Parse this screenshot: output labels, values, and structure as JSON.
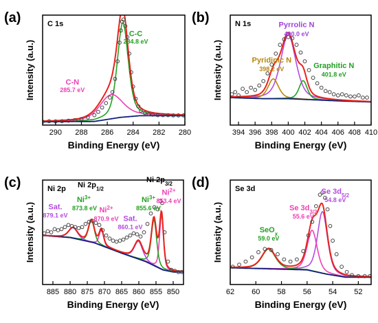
{
  "chart_data": [
    {
      "type": "line",
      "panel_label": "(a)",
      "region": "C 1s",
      "xlabel": "Binding Energy (eV)",
      "ylabel": "Intensity (a.u.)",
      "xlim": [
        291,
        280
      ],
      "x_reversed": true,
      "xticks": [
        "290",
        "288",
        "286",
        "284",
        "282",
        "280"
      ],
      "xtick_values": [
        290,
        288,
        286,
        284,
        282,
        280
      ],
      "ylim": [
        0,
        1.0
      ],
      "baseline": [
        [
          291,
          0.03
        ],
        [
          287,
          0.033
        ],
        [
          285,
          0.07
        ],
        [
          283.5,
          0.085
        ],
        [
          282,
          0.085
        ],
        [
          280,
          0.085
        ]
      ],
      "peaks": [
        {
          "label": "C-C",
          "center_label": "284.8 eV",
          "center": 284.8,
          "height": 0.86,
          "width": 0.6,
          "color": "#22a022",
          "label_color": "#22a022",
          "label_pos": [
            283.8,
            0.81
          ],
          "value_pos": [
            283.8,
            0.74
          ]
        },
        {
          "label": "C-N",
          "center_label": "285.7 eV",
          "center": 285.7,
          "height": 0.22,
          "width": 1.3,
          "color": "#ee3fb4",
          "label_color": "#ee3fb4",
          "label_pos": [
            288.7,
            0.37
          ],
          "value_pos": [
            288.7,
            0.3
          ]
        }
      ],
      "envelope_color": "#e8221b",
      "baseline_color": "#0f1f7a",
      "raw_points": [
        [
          291,
          0.03
        ],
        [
          290.5,
          0.035
        ],
        [
          290,
          0.033
        ],
        [
          289.5,
          0.035
        ],
        [
          289,
          0.04
        ],
        [
          288.5,
          0.045
        ],
        [
          288,
          0.055
        ],
        [
          287.5,
          0.07
        ],
        [
          287,
          0.09
        ],
        [
          286.7,
          0.12
        ],
        [
          286.4,
          0.16
        ],
        [
          286.1,
          0.2
        ],
        [
          285.8,
          0.25
        ],
        [
          285.6,
          0.3
        ],
        [
          285.4,
          0.42
        ],
        [
          285.2,
          0.58
        ],
        [
          285.05,
          0.75
        ],
        [
          284.95,
          0.86
        ],
        [
          284.85,
          0.94
        ],
        [
          284.75,
          0.96
        ],
        [
          284.6,
          0.9
        ],
        [
          284.45,
          0.8
        ],
        [
          284.3,
          0.65
        ],
        [
          284.15,
          0.48
        ],
        [
          284.0,
          0.35
        ],
        [
          283.8,
          0.24
        ],
        [
          283.6,
          0.17
        ],
        [
          283.4,
          0.13
        ],
        [
          283.1,
          0.11
        ],
        [
          282.8,
          0.1
        ],
        [
          282.5,
          0.095
        ],
        [
          282.1,
          0.09
        ],
        [
          281.7,
          0.09
        ],
        [
          281.3,
          0.09
        ],
        [
          280.9,
          0.088
        ],
        [
          280.5,
          0.088
        ],
        [
          280.1,
          0.088
        ]
      ]
    },
    {
      "type": "line",
      "panel_label": "(b)",
      "region": "N 1s",
      "xlabel": "Binding Energy (eV)",
      "ylabel": "Intensity (a.u.)",
      "xlim": [
        393,
        410
      ],
      "x_reversed": false,
      "xticks": [
        "394",
        "396",
        "398",
        "400",
        "402",
        "404",
        "406",
        "408",
        "410"
      ],
      "xtick_values": [
        394,
        396,
        398,
        400,
        402,
        404,
        406,
        408,
        410
      ],
      "ylim": [
        0,
        1.0
      ],
      "baseline": [
        [
          393,
          0.25
        ],
        [
          397,
          0.24
        ],
        [
          400,
          0.24
        ],
        [
          403,
          0.23
        ],
        [
          406,
          0.22
        ],
        [
          410,
          0.21
        ]
      ],
      "peaks": [
        {
          "label": "Pyrrolic N",
          "center_label": "400.0 eV",
          "center": 400.0,
          "height": 0.58,
          "width": 1.3,
          "color": "#b44ae0",
          "label_color": "#a23fe0",
          "label_pos": [
            401.0,
            0.89
          ],
          "value_pos": [
            401.0,
            0.81
          ]
        },
        {
          "label": "Pyridinic N",
          "center_label": "398.2 eV",
          "center": 398.2,
          "height": 0.18,
          "width": 0.9,
          "color": "#b8860b",
          "label_color": "#b8860b",
          "label_pos": [
            398.0,
            0.57
          ],
          "value_pos": [
            398.0,
            0.49
          ]
        },
        {
          "label": "Graphitic N",
          "center_label": "401.8 eV",
          "center": 401.8,
          "height": 0.17,
          "width": 0.7,
          "color": "#22a022",
          "label_color": "#22a022",
          "label_pos": [
            405.5,
            0.52
          ],
          "value_pos": [
            405.5,
            0.44
          ]
        }
      ],
      "envelope_color": "#e8221b",
      "baseline_color": "#0f1f7a",
      "raw_points": [
        [
          393.2,
          0.28
        ],
        [
          393.6,
          0.3
        ],
        [
          394.0,
          0.27
        ],
        [
          394.5,
          0.33
        ],
        [
          395.0,
          0.3
        ],
        [
          395.5,
          0.34
        ],
        [
          396.0,
          0.32
        ],
        [
          396.5,
          0.36
        ],
        [
          397.0,
          0.4
        ],
        [
          397.5,
          0.47
        ],
        [
          398.0,
          0.55
        ],
        [
          398.5,
          0.65
        ],
        [
          399.0,
          0.73
        ],
        [
          399.5,
          0.78
        ],
        [
          400.0,
          0.8
        ],
        [
          400.5,
          0.79
        ],
        [
          401.0,
          0.73
        ],
        [
          401.5,
          0.66
        ],
        [
          402.0,
          0.58
        ],
        [
          402.5,
          0.5
        ],
        [
          403.0,
          0.43
        ],
        [
          403.5,
          0.38
        ],
        [
          404.0,
          0.34
        ],
        [
          404.5,
          0.31
        ],
        [
          405.0,
          0.3
        ],
        [
          405.5,
          0.28
        ],
        [
          406.0,
          0.27
        ],
        [
          406.5,
          0.28
        ],
        [
          407.0,
          0.27
        ],
        [
          407.5,
          0.26
        ],
        [
          408.0,
          0.26
        ],
        [
          408.5,
          0.27
        ],
        [
          409.0,
          0.25
        ],
        [
          409.5,
          0.25
        ]
      ]
    },
    {
      "type": "line",
      "panel_label": "(c)",
      "region": "Ni 2p",
      "xlabel": "Binding Energy (eV)",
      "ylabel": "Intensity (a.u.)",
      "xlim": [
        888,
        847
      ],
      "x_reversed": true,
      "xticks": [
        "885",
        "880",
        "875",
        "870",
        "865",
        "860",
        "855",
        "850"
      ],
      "xtick_values": [
        885,
        880,
        875,
        870,
        865,
        860,
        855,
        850
      ],
      "ylim": [
        0,
        1.0
      ],
      "baseline": [
        [
          888,
          0.47
        ],
        [
          880,
          0.45
        ],
        [
          873,
          0.4
        ],
        [
          865,
          0.3
        ],
        [
          858,
          0.22
        ],
        [
          853,
          0.14
        ],
        [
          850,
          0.12
        ],
        [
          847,
          0.12
        ]
      ],
      "peaks": [
        {
          "label": "Ni",
          "sup": "2+",
          "center_label": "853.4 eV",
          "center": 853.4,
          "height": 0.52,
          "width": 0.8,
          "color": "#ee3fb4",
          "label_color": "#ee3fb4",
          "label_pos": [
            851.3,
            0.86
          ],
          "value_pos": [
            851.3,
            0.78
          ]
        },
        {
          "label": "Ni",
          "sup": "3+",
          "center_label": "855.6 eV",
          "center": 855.6,
          "height": 0.44,
          "width": 1.1,
          "color": "#22a022",
          "label_color": "#22a022",
          "label_pos": [
            857.2,
            0.79
          ],
          "value_pos": [
            857.2,
            0.71
          ]
        },
        {
          "label": "Sat.",
          "center_label": "860.1 eV",
          "center": 860.1,
          "height": 0.17,
          "width": 1.7,
          "color": "#b44ae0",
          "label_color": "#b44ae0",
          "label_pos": [
            862.5,
            0.61
          ],
          "value_pos": [
            862.5,
            0.53
          ]
        },
        {
          "label": "Ni",
          "sup": "2+",
          "center_label": "870.9 eV",
          "center": 870.9,
          "height": 0.15,
          "width": 0.9,
          "color": "#ee3fb4",
          "label_color": "#ee3fb4",
          "label_pos": [
            869.5,
            0.69
          ],
          "value_pos": [
            869.5,
            0.61
          ]
        },
        {
          "label": "Ni",
          "sup": "3+",
          "center_label": "873.8 eV",
          "center": 873.8,
          "height": 0.21,
          "width": 1.2,
          "color": "#22a022",
          "label_color": "#22a022",
          "label_pos": [
            876.0,
            0.79
          ],
          "value_pos": [
            875.8,
            0.71
          ]
        },
        {
          "label": "Sat.",
          "center_label": "879.1 eV",
          "center": 879.1,
          "height": 0.1,
          "width": 1.8,
          "color": "#b44ae0",
          "label_color": "#b44ae0",
          "label_pos": [
            884.3,
            0.72
          ],
          "value_pos": [
            884.3,
            0.64
          ]
        }
      ],
      "annotations": [
        {
          "text": "Ni 2p",
          "sub": "1/2",
          "x": 874.0,
          "y": 0.93,
          "color": "#000000"
        },
        {
          "text": "Ni 2p",
          "sub": "3/2",
          "x": 854.0,
          "y": 0.98,
          "color": "#000000"
        }
      ],
      "envelope_color": "#e8221b",
      "baseline_color": "#0f1f7a",
      "raw_points": [
        [
          887.5,
          0.49
        ],
        [
          886.5,
          0.51
        ],
        [
          885.5,
          0.5
        ],
        [
          884.5,
          0.53
        ],
        [
          883.5,
          0.52
        ],
        [
          882.5,
          0.53
        ],
        [
          881.5,
          0.55
        ],
        [
          880.5,
          0.57
        ],
        [
          879.5,
          0.56
        ],
        [
          878.5,
          0.55
        ],
        [
          877.5,
          0.54
        ],
        [
          876.5,
          0.55
        ],
        [
          875.5,
          0.58
        ],
        [
          874.5,
          0.6
        ],
        [
          873.5,
          0.61
        ],
        [
          872.5,
          0.59
        ],
        [
          871.5,
          0.57
        ],
        [
          870.5,
          0.52
        ],
        [
          869.5,
          0.47
        ],
        [
          868.5,
          0.44
        ],
        [
          867.5,
          0.42
        ],
        [
          866.5,
          0.41
        ],
        [
          865.5,
          0.42
        ],
        [
          864.5,
          0.43
        ],
        [
          863.5,
          0.45
        ],
        [
          862.5,
          0.47
        ],
        [
          861.5,
          0.49
        ],
        [
          860.5,
          0.48
        ],
        [
          859.5,
          0.46
        ],
        [
          858.5,
          0.5
        ],
        [
          857.5,
          0.58
        ],
        [
          856.5,
          0.68
        ],
        [
          855.5,
          0.74
        ],
        [
          854.5,
          0.72
        ],
        [
          853.7,
          0.8
        ],
        [
          853.2,
          0.78
        ],
        [
          852.5,
          0.5
        ],
        [
          851.5,
          0.22
        ],
        [
          850.5,
          0.14
        ],
        [
          849.5,
          0.13
        ],
        [
          848.5,
          0.12
        ],
        [
          847.5,
          0.12
        ]
      ]
    },
    {
      "type": "line",
      "panel_label": "(d)",
      "region": "Se 3d",
      "xlabel": "Binding Energy (eV)",
      "ylabel": "Intensity (a.u.)",
      "xlim": [
        62,
        51
      ],
      "x_reversed": true,
      "xticks": [
        "62",
        "60",
        "58",
        "56",
        "54",
        "52"
      ],
      "xtick_values": [
        62,
        60,
        58,
        56,
        54,
        52
      ],
      "ylim": [
        0,
        1.0
      ],
      "baseline": [
        [
          62,
          0.16
        ],
        [
          59,
          0.15
        ],
        [
          56,
          0.14
        ],
        [
          54.5,
          0.1
        ],
        [
          53,
          0.07
        ],
        [
          51,
          0.07
        ]
      ],
      "peaks": [
        {
          "label": "Se 3d",
          "sub": "5/2",
          "center_label": "54.8 eV",
          "center": 54.8,
          "height": 0.59,
          "width": 0.55,
          "color": "#b44ae0",
          "label_color": "#b44ae0",
          "label_pos": [
            53.8,
            0.87
          ],
          "value_pos": [
            53.8,
            0.79
          ]
        },
        {
          "label": "Se 3d",
          "sub": "3/2",
          "center_label": "55.6 eV",
          "center": 55.6,
          "height": 0.39,
          "width": 0.55,
          "color": "#ee3fb4",
          "label_color": "#ee3fb4",
          "label_pos": [
            56.3,
            0.71
          ],
          "value_pos": [
            56.3,
            0.63
          ]
        },
        {
          "label": "SeO",
          "sub": "x",
          "center_label": "59.0 eV",
          "center": 59.0,
          "height": 0.19,
          "width": 0.75,
          "color": "#22a022",
          "label_color": "#22a022",
          "label_pos": [
            59.0,
            0.5
          ],
          "value_pos": [
            59.0,
            0.42
          ]
        }
      ],
      "envelope_color": "#e8221b",
      "baseline_color": "#0f1f7a",
      "raw_points": [
        [
          61.8,
          0.17
        ],
        [
          61.3,
          0.19
        ],
        [
          60.8,
          0.22
        ],
        [
          60.3,
          0.26
        ],
        [
          59.8,
          0.31
        ],
        [
          59.3,
          0.34
        ],
        [
          58.8,
          0.33
        ],
        [
          58.3,
          0.29
        ],
        [
          57.8,
          0.24
        ],
        [
          57.3,
          0.22
        ],
        [
          56.8,
          0.24
        ],
        [
          56.3,
          0.32
        ],
        [
          55.9,
          0.47
        ],
        [
          55.6,
          0.6
        ],
        [
          55.3,
          0.75
        ],
        [
          55.0,
          0.86
        ],
        [
          54.8,
          0.88
        ],
        [
          54.6,
          0.83
        ],
        [
          54.4,
          0.72
        ],
        [
          54.2,
          0.56
        ],
        [
          54.0,
          0.42
        ],
        [
          53.7,
          0.29
        ],
        [
          53.3,
          0.17
        ],
        [
          52.9,
          0.12
        ],
        [
          52.5,
          0.09
        ],
        [
          52.0,
          0.08
        ],
        [
          51.5,
          0.08
        ],
        [
          51.1,
          0.08
        ]
      ]
    }
  ]
}
